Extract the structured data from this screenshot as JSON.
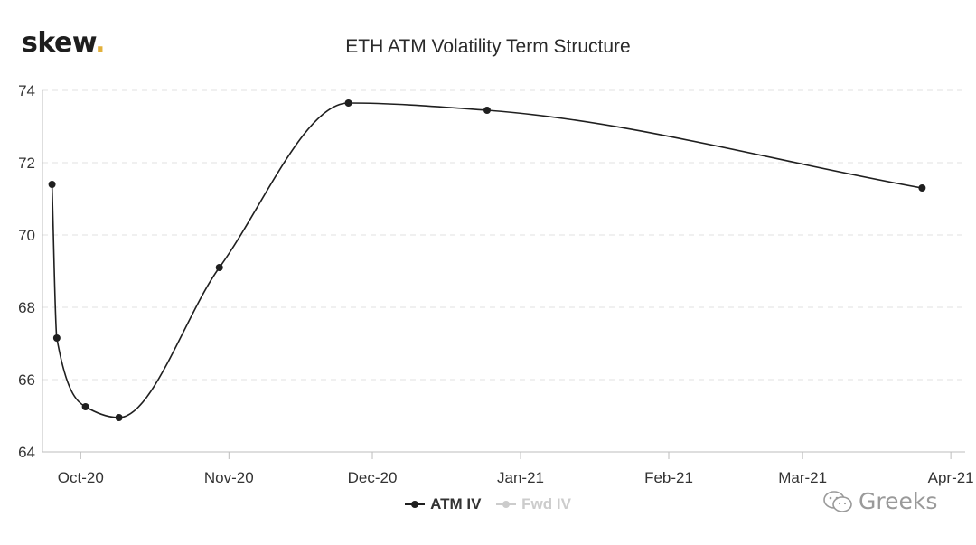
{
  "brand": {
    "name": "skew",
    "dot": "."
  },
  "watermark": {
    "text": "Greeks",
    "icon": "wechat-icon"
  },
  "colors": {
    "atm_series": "#1f1f1f",
    "fwd_series_inactive": "#cccccc",
    "brand_dot": "#e2b13c",
    "grid": "#e2e2e2"
  },
  "chart_data": {
    "type": "line",
    "title": "ETH ATM Volatility Term Structure",
    "xlabel": "",
    "ylabel": "",
    "ylim": [
      64,
      74
    ],
    "yticks": [
      64,
      66,
      68,
      70,
      72,
      74
    ],
    "xlim": [
      "2020-09-23",
      "2021-04-04"
    ],
    "xticks": [
      {
        "label": "Oct-20",
        "date": "2020-10-01"
      },
      {
        "label": "Nov-20",
        "date": "2020-11-01"
      },
      {
        "label": "Dec-20",
        "date": "2020-12-01"
      },
      {
        "label": "Jan-21",
        "date": "2021-01-01"
      },
      {
        "label": "Feb-21",
        "date": "2021-02-01"
      },
      {
        "label": "Mar-21",
        "date": "2021-03-01"
      },
      {
        "label": "Apr-21",
        "date": "2021-04-01"
      }
    ],
    "grid": "horizontal dashed",
    "legend_position": "bottom",
    "series": [
      {
        "name": "ATM IV",
        "active": true,
        "points": [
          {
            "x": "2020-09-25",
            "y": 71.4
          },
          {
            "x": "2020-09-26",
            "y": 67.15
          },
          {
            "x": "2020-10-02",
            "y": 65.25
          },
          {
            "x": "2020-10-09",
            "y": 64.95
          },
          {
            "x": "2020-10-30",
            "y": 69.1
          },
          {
            "x": "2020-11-26",
            "y": 73.65
          },
          {
            "x": "2020-12-25",
            "y": 73.45
          },
          {
            "x": "2021-03-26",
            "y": 71.3
          }
        ]
      },
      {
        "name": "Fwd IV",
        "active": false,
        "points": []
      }
    ]
  }
}
